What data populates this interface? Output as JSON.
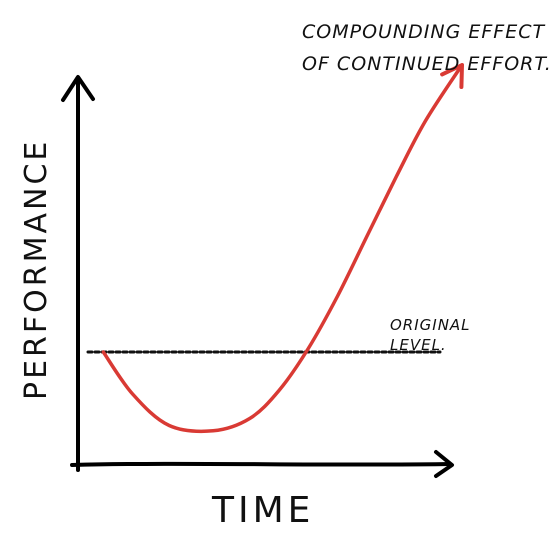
{
  "chart_data": {
    "type": "line",
    "title": "",
    "xlabel": "TIME",
    "ylabel": "PERFORMANCE",
    "xlim": [
      0,
      100
    ],
    "ylim": [
      0,
      100
    ],
    "grid": false,
    "legend": "none",
    "baseline": {
      "name": "ORIGINAL LEVEL.",
      "label_lines": [
        "ORIGINAL",
        "LEVEL."
      ],
      "y": 28,
      "style": "dotted",
      "color": "#111111"
    },
    "series": [
      {
        "color": "#d93a34",
        "arrow_end": true,
        "x": [
          2,
          10,
          20,
          32,
          42,
          50,
          58,
          66,
          74,
          82,
          90,
          100
        ],
        "y": [
          28,
          16,
          7,
          5.5,
          9,
          17,
          29,
          44,
          61,
          78,
          94,
          110
        ]
      }
    ],
    "annotations": [
      {
        "name": "compounding-annotation",
        "lines": [
          "COMPOUNDING EFFECT",
          "OF CONTINUED EFFORT."
        ]
      }
    ]
  }
}
